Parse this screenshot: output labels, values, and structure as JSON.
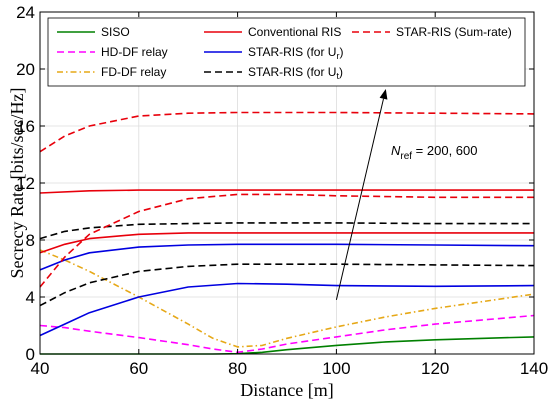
{
  "chart_data": {
    "type": "line",
    "xlabel": "Distance [m]",
    "ylabel": "Secrecy Rate [bits/sec/Hz]",
    "xlim": [
      40,
      140
    ],
    "ylim": [
      0,
      24
    ],
    "xticks": [
      "40",
      "60",
      "80",
      "100",
      "120",
      "140"
    ],
    "yticks": [
      "0",
      "4",
      "8",
      "12",
      "16",
      "20",
      "24"
    ],
    "grid": true,
    "legend_position": "top",
    "annotation": {
      "text_main": "N",
      "text_sub": "ref",
      "text_rest": " = 200, 600",
      "arrow_from": [
        100,
        3.8
      ],
      "arrow_to": [
        110,
        18.6
      ]
    },
    "series": [
      {
        "name": "SISO",
        "color": "#008000",
        "dash": "solid",
        "x": [
          40,
          60,
          75,
          80,
          85,
          90,
          100,
          110,
          120,
          130,
          140
        ],
        "y": [
          0,
          0,
          0,
          0.02,
          0.12,
          0.3,
          0.6,
          0.85,
          1.0,
          1.1,
          1.2
        ]
      },
      {
        "name": "HD-DF relay",
        "color": "#ff00ff",
        "dash": "dash",
        "x": [
          40,
          45,
          50,
          60,
          70,
          75,
          80,
          85,
          90,
          100,
          110,
          120,
          130,
          140
        ],
        "y": [
          2.0,
          1.85,
          1.6,
          1.15,
          0.65,
          0.35,
          0.12,
          0.35,
          0.7,
          1.2,
          1.7,
          2.1,
          2.4,
          2.7
        ]
      },
      {
        "name": "FD-DF relay",
        "color": "#e6a817",
        "dash": "dashdot",
        "x": [
          40,
          45,
          50,
          60,
          70,
          75,
          80,
          85,
          90,
          100,
          110,
          120,
          130,
          140
        ],
        "y": [
          7.3,
          6.6,
          5.8,
          4.0,
          2.1,
          1.1,
          0.5,
          0.6,
          1.1,
          1.9,
          2.6,
          3.2,
          3.7,
          4.2
        ]
      },
      {
        "name": "Conventional RIS",
        "color": "#e8000b",
        "dash": "solid",
        "x": [
          40,
          50,
          60,
          80,
          100,
          120,
          140
        ],
        "y": [
          11.3,
          11.45,
          11.5,
          11.5,
          11.5,
          11.5,
          11.5
        ]
      },
      {
        "name": "Conventional RIS",
        "color": "#e8000b",
        "dash": "solid",
        "x": [
          40,
          45,
          50,
          60,
          70,
          80,
          100,
          120,
          140
        ],
        "y": [
          7.1,
          7.7,
          8.1,
          8.4,
          8.5,
          8.5,
          8.5,
          8.5,
          8.5
        ]
      },
      {
        "name": "STAR-RIS (for U_r)",
        "color": "#0000e0",
        "dash": "solid",
        "x": [
          40,
          45,
          50,
          60,
          70,
          80,
          100,
          120,
          140
        ],
        "y": [
          5.9,
          6.6,
          7.1,
          7.5,
          7.65,
          7.7,
          7.7,
          7.65,
          7.6
        ]
      },
      {
        "name": "STAR-RIS (for U_r)",
        "color": "#0000e0",
        "dash": "solid",
        "x": [
          40,
          45,
          50,
          60,
          70,
          80,
          90,
          100,
          120,
          140
        ],
        "y": [
          1.3,
          2.1,
          2.9,
          4.0,
          4.7,
          4.95,
          4.9,
          4.8,
          4.75,
          4.8
        ]
      },
      {
        "name": "STAR-RIS (for U_t)",
        "color": "#000000",
        "dash": "dash",
        "x": [
          40,
          45,
          50,
          60,
          70,
          80,
          100,
          120,
          140
        ],
        "y": [
          8.1,
          8.6,
          8.85,
          9.1,
          9.15,
          9.2,
          9.2,
          9.15,
          9.15
        ]
      },
      {
        "name": "STAR-RIS (for U_t)",
        "color": "#000000",
        "dash": "dash",
        "x": [
          40,
          45,
          50,
          60,
          70,
          80,
          100,
          120,
          140
        ],
        "y": [
          3.4,
          4.3,
          5.0,
          5.8,
          6.15,
          6.3,
          6.3,
          6.25,
          6.2
        ]
      },
      {
        "name": "STAR-RIS (Sum-rate)",
        "color": "#e8000b",
        "dash": "dash",
        "x": [
          40,
          45,
          50,
          60,
          70,
          80,
          100,
          120,
          140
        ],
        "y": [
          14.2,
          15.3,
          16.0,
          16.7,
          16.9,
          16.95,
          16.95,
          16.9,
          16.85
        ]
      },
      {
        "name": "STAR-RIS (Sum-rate)",
        "color": "#e8000b",
        "dash": "dash",
        "x": [
          40,
          45,
          50,
          60,
          70,
          80,
          90,
          100,
          120,
          140
        ],
        "y": [
          4.7,
          6.8,
          8.4,
          10.0,
          10.9,
          11.2,
          11.2,
          11.1,
          11.0,
          11.0
        ]
      }
    ],
    "legend": [
      {
        "label": "SISO",
        "color": "#008000",
        "dash": "solid"
      },
      {
        "label": "Conventional RIS",
        "color": "#e8000b",
        "dash": "solid"
      },
      {
        "label": "STAR-RIS (Sum-rate)",
        "color": "#e8000b",
        "dash": "dash"
      },
      {
        "label": "HD-DF relay",
        "color": "#ff00ff",
        "dash": "dash"
      },
      {
        "label": "STAR-RIS (for U",
        "sub": "r",
        "tail": ")",
        "color": "#0000e0",
        "dash": "solid"
      },
      {
        "label": "FD-DF relay",
        "color": "#e6a817",
        "dash": "dashdot"
      },
      {
        "label": "STAR-RIS (for U",
        "sub": "t",
        "tail": ")",
        "color": "#000000",
        "dash": "dash"
      }
    ]
  }
}
